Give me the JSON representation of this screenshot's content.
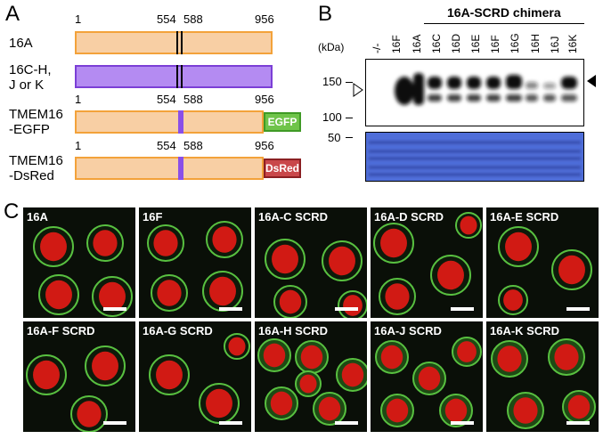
{
  "panelA": {
    "letter": "A",
    "rows": [
      {
        "label": "16A",
        "nums": [
          "1",
          "554",
          "588",
          "956"
        ]
      },
      {
        "label": "16C-H,\nJ or K"
      },
      {
        "label": "TMEM16\n-EGFP",
        "nums": [
          "1",
          "554",
          "588",
          "956"
        ],
        "tag": "EGFP"
      },
      {
        "label": "TMEM16\n-DsRed",
        "nums": [
          "1",
          "554",
          "588",
          "956"
        ],
        "tag": "DsRed"
      }
    ],
    "colors": {
      "orange_fill": "#f8cfa4",
      "orange_border": "#f3a23a",
      "purple_fill": "#b48bf2",
      "egfp": "#6fc44a",
      "dsred": "#c9474a"
    }
  },
  "panelB": {
    "letter": "B",
    "kda": "(kDa)",
    "chimera": "16A-SCRD chimera",
    "lanes": [
      "-/-",
      "16F",
      "16A",
      "16C",
      "16D",
      "16E",
      "16F",
      "16G",
      "16H",
      "16J",
      "16K"
    ],
    "markers": [
      "150",
      "100",
      "50"
    ]
  },
  "panelC": {
    "letter": "C",
    "panels": [
      "16A",
      "16F",
      "16A-C SCRD",
      "16A-D SCRD",
      "16A-E SCRD",
      "16A-F SCRD",
      "16A-G SCRD",
      "16A-H SCRD",
      "16A-J SCRD",
      "16A-K SCRD"
    ]
  }
}
